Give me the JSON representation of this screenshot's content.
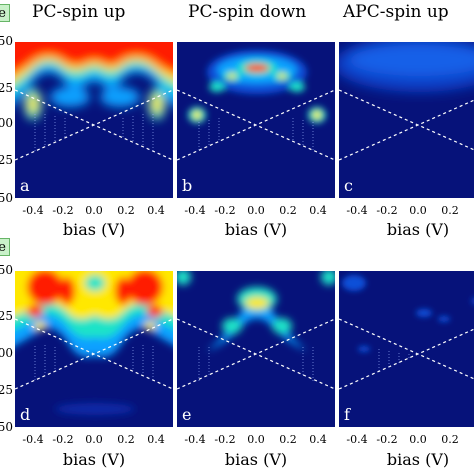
{
  "column_titles": [
    "PC-spin up",
    "PC-spin down",
    "APC-spin up"
  ],
  "row_tags": [
    "e",
    "e"
  ],
  "y_ticks": [
    "50",
    "25",
    "00",
    "25",
    "50"
  ],
  "x_ticks": [
    "-0.4",
    "-0.2",
    "0.0",
    "0.2",
    "0.4"
  ],
  "x_axis_label": "bias (V)",
  "panel_labels": [
    "a",
    "b",
    "c",
    "d",
    "e",
    "f"
  ],
  "colors": {
    "background": "#06127a",
    "accent_red": "#ff1a00",
    "accent_yellow": "#ffe800",
    "guide": "#ffffff",
    "tag_fill": "#c9f1c9"
  }
}
